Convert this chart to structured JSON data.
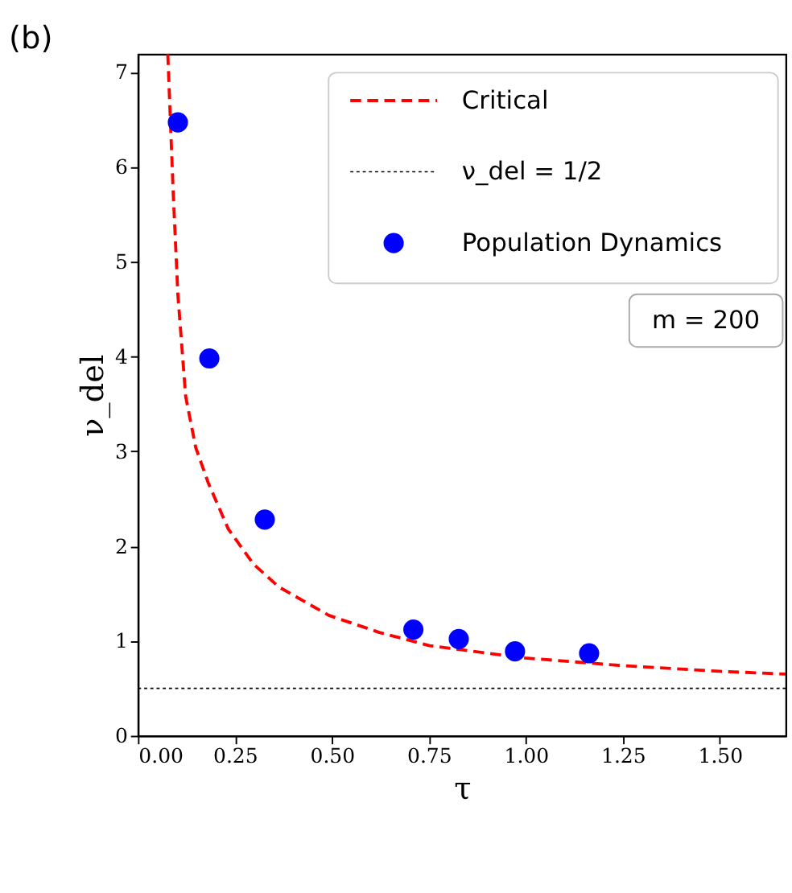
{
  "chart_data": {
    "type": "line",
    "title": "(b)",
    "xlabel": "τ",
    "ylabel": "ν_del",
    "xlim": [
      0,
      1.67
    ],
    "ylim": [
      0,
      7.19
    ],
    "xticks": [
      {
        "value": 0,
        "label": "0.00"
      },
      {
        "value": 0.25,
        "label": "0.25"
      },
      {
        "value": 0.5,
        "label": "0.50"
      },
      {
        "value": 0.75,
        "label": "0.75"
      },
      {
        "value": 1,
        "label": "1.00"
      },
      {
        "value": 1.25,
        "label": "1.25"
      },
      {
        "value": 1.5,
        "label": "1.50"
      }
    ],
    "yticks": [
      0,
      1,
      2,
      3,
      4,
      5,
      6,
      7
    ],
    "series": [
      {
        "name": "Critical",
        "color": "#ff0000",
        "line_style": "dashed",
        "x": [
          0.077,
          0.091,
          0.103,
          0.123,
          0.149,
          0.181,
          0.233,
          0.298,
          0.363,
          0.492,
          0.622,
          0.752,
          0.998,
          1.248,
          1.498,
          1.67
        ],
        "values": [
          7.19,
          5.72,
          4.65,
          3.58,
          3.04,
          2.67,
          2.18,
          1.81,
          1.57,
          1.27,
          1.09,
          0.95,
          0.82,
          0.74,
          0.68,
          0.65
        ]
      },
      {
        "name": "Population Dynamics",
        "type": "scatter",
        "color": "#0000ff",
        "marker": "circle",
        "x": [
          0.103,
          0.184,
          0.327,
          0.71,
          0.827,
          0.972,
          1.163
        ],
        "values": [
          6.47,
          3.98,
          2.28,
          1.12,
          1.02,
          0.89,
          0.87
        ]
      }
    ],
    "ref_lines": [
      {
        "axis": "y",
        "value": 0.5,
        "label": "ν_del = 1/2",
        "color": "#000000",
        "line_style": "dotted"
      }
    ],
    "annotations": [
      "m = 200"
    ],
    "legend": "top right",
    "grid": false
  }
}
